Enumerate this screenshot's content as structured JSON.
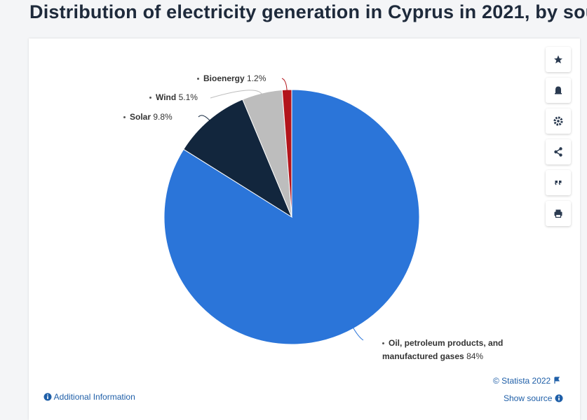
{
  "page_title": "Distribution of electricity generation in Cyprus in 2021, by sou",
  "chart_data": {
    "type": "pie",
    "categories": [
      "Oil, petroleum products, and manufactured gases",
      "Solar",
      "Wind",
      "Bioenergy"
    ],
    "values": [
      84,
      9.8,
      5.1,
      1.2
    ],
    "value_labels": [
      "84%",
      "9.8%",
      "5.1%",
      "1.2%"
    ],
    "colors": [
      "#2b75d9",
      "#12263d",
      "#bdbdbd",
      "#b3141b"
    ]
  },
  "footer": {
    "copyright": "© Statista 2022",
    "additional_information": "Additional Information",
    "show_source": "Show source"
  }
}
